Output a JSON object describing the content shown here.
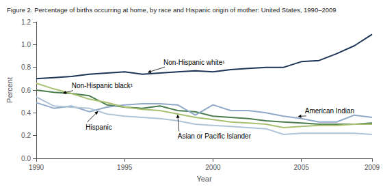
{
  "chart_data": {
    "type": "line",
    "title": "Figure 2. Percentage of births occurring at home, by race and Hispanic origin of mother: United States, 1990–2009",
    "xlabel": "Year",
    "ylabel": "Percent",
    "x": [
      1990,
      1991,
      1992,
      1993,
      1994,
      1995,
      1996,
      1997,
      1998,
      1999,
      2000,
      2001,
      2002,
      2003,
      2004,
      2005,
      2006,
      2007,
      2008,
      2009
    ],
    "series": [
      {
        "name": "Non-Hispanic white¹",
        "color": "#1c3557",
        "values": [
          0.7,
          0.71,
          0.72,
          0.74,
          0.75,
          0.76,
          0.74,
          0.75,
          0.76,
          0.77,
          0.76,
          0.78,
          0.79,
          0.8,
          0.8,
          0.85,
          0.86,
          0.92,
          0.99,
          1.09
        ]
      },
      {
        "name": "Non-Hispanic black¹",
        "color": "#4a7c4e",
        "values": [
          0.6,
          0.58,
          0.57,
          0.55,
          0.47,
          0.45,
          0.44,
          0.46,
          0.42,
          0.41,
          0.37,
          0.36,
          0.35,
          0.33,
          0.32,
          0.31,
          0.3,
          0.3,
          0.3,
          0.31
        ]
      },
      {
        "name": "American Indian",
        "color": "#8fa9c8",
        "values": [
          0.49,
          0.44,
          0.46,
          0.41,
          0.45,
          0.47,
          0.48,
          0.48,
          0.47,
          0.38,
          0.47,
          0.42,
          0.42,
          0.4,
          0.37,
          0.35,
          0.32,
          0.32,
          0.38,
          0.36
        ]
      },
      {
        "name": "Hispanic",
        "color": "#b0c4d8",
        "values": [
          0.54,
          0.46,
          0.45,
          0.44,
          0.39,
          0.37,
          0.36,
          0.35,
          0.33,
          0.3,
          0.29,
          0.28,
          0.27,
          0.26,
          0.21,
          0.22,
          0.22,
          0.22,
          0.22,
          0.21
        ]
      },
      {
        "name": "Asian or Pacific Islander",
        "color": "#a8c070",
        "values": [
          0.66,
          0.61,
          0.57,
          0.52,
          0.49,
          0.45,
          0.43,
          0.42,
          0.39,
          0.36,
          0.34,
          0.32,
          0.31,
          0.3,
          0.27,
          0.28,
          0.29,
          0.29,
          0.3,
          0.3
        ]
      }
    ],
    "xlim": [
      1990,
      2009
    ],
    "xticks": [
      1990,
      1995,
      2000,
      2005,
      2009
    ],
    "ylim": [
      0.0,
      1.2
    ],
    "yticks": [
      {
        "value": 0.0,
        "label": "0.0"
      },
      0.2,
      0.4,
      0.6,
      0.8,
      {
        "value": 1.0,
        "label": "1.0"
      },
      1.2
    ],
    "grid": false,
    "legend": false,
    "annotations": [
      {
        "text": "Non-Hispanic white¹",
        "xy": [
          1996.3,
          0.755
        ],
        "xytext": [
          1997.2,
          0.845
        ]
      },
      {
        "text": "Non-Hispanic black¹",
        "xy": [
          1991.5,
          0.572
        ],
        "xytext": [
          1992.0,
          0.638
        ]
      },
      {
        "text": "Hispanic",
        "xy": [
          1993.5,
          0.415
        ],
        "xytext": [
          1992.8,
          0.275
        ]
      },
      {
        "text": "Asian or Pacific Islander",
        "xy": [
          1998.0,
          0.385
        ],
        "xytext": [
          1998.0,
          0.195
        ]
      },
      {
        "text": "American Indian",
        "xy": [
          2004.8,
          0.368
        ],
        "xytext": [
          2005.2,
          0.415
        ]
      }
    ]
  }
}
